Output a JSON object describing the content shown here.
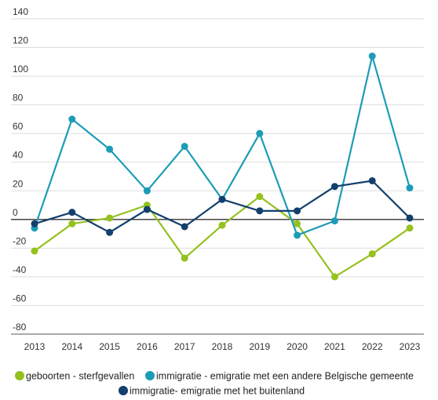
{
  "chart_data": {
    "type": "line",
    "title": "",
    "xlabel": "",
    "ylabel": "",
    "categories": [
      "2013",
      "2014",
      "2015",
      "2016",
      "2017",
      "2018",
      "2019",
      "2020",
      "2021",
      "2022",
      "2023"
    ],
    "ylim": [
      -80,
      140
    ],
    "yticks": [
      140,
      120,
      100,
      80,
      60,
      40,
      20,
      0,
      -20,
      -40,
      -60,
      -80
    ],
    "grid": true,
    "legend_position": "bottom",
    "series": [
      {
        "name": "geboorten - sterfgevallen",
        "color": "#95c11f",
        "values": [
          -22,
          -3,
          1,
          10,
          -27,
          -4,
          16,
          -3,
          -40,
          -24,
          -6
        ]
      },
      {
        "name": "immigratie - emigratie met een andere Belgische gemeente",
        "color": "#1c9cb6",
        "values": [
          -6,
          70,
          49,
          20,
          51,
          14,
          60,
          -11,
          -1,
          114,
          22
        ]
      },
      {
        "name": "immigratie- emigratie met het buitenland",
        "color": "#123f6d",
        "values": [
          -3,
          5,
          -9,
          7,
          -5,
          14,
          6,
          6,
          23,
          27,
          1
        ]
      }
    ]
  }
}
